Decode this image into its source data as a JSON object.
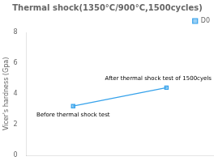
{
  "chart_data": {
    "type": "line",
    "title": "Thermal shock(1350°C/900°C,1500cycles)",
    "ylabel": "Vicer's hardness (Gpa)",
    "x": [
      0.25,
      0.75
    ],
    "series": [
      {
        "name": "D0",
        "values": [
          3.2,
          4.4
        ]
      }
    ],
    "xlim": [
      0,
      1
    ],
    "xticks": [],
    "ylim": [
      0,
      8
    ],
    "yticks": [
      0,
      2,
      4,
      6,
      8
    ],
    "grid": false,
    "tick_labels": "y",
    "legend": "upper right",
    "marker": "square",
    "annotations": [
      "Before thermal shock test",
      "After thermal shock test of 1500cyels"
    ]
  }
}
